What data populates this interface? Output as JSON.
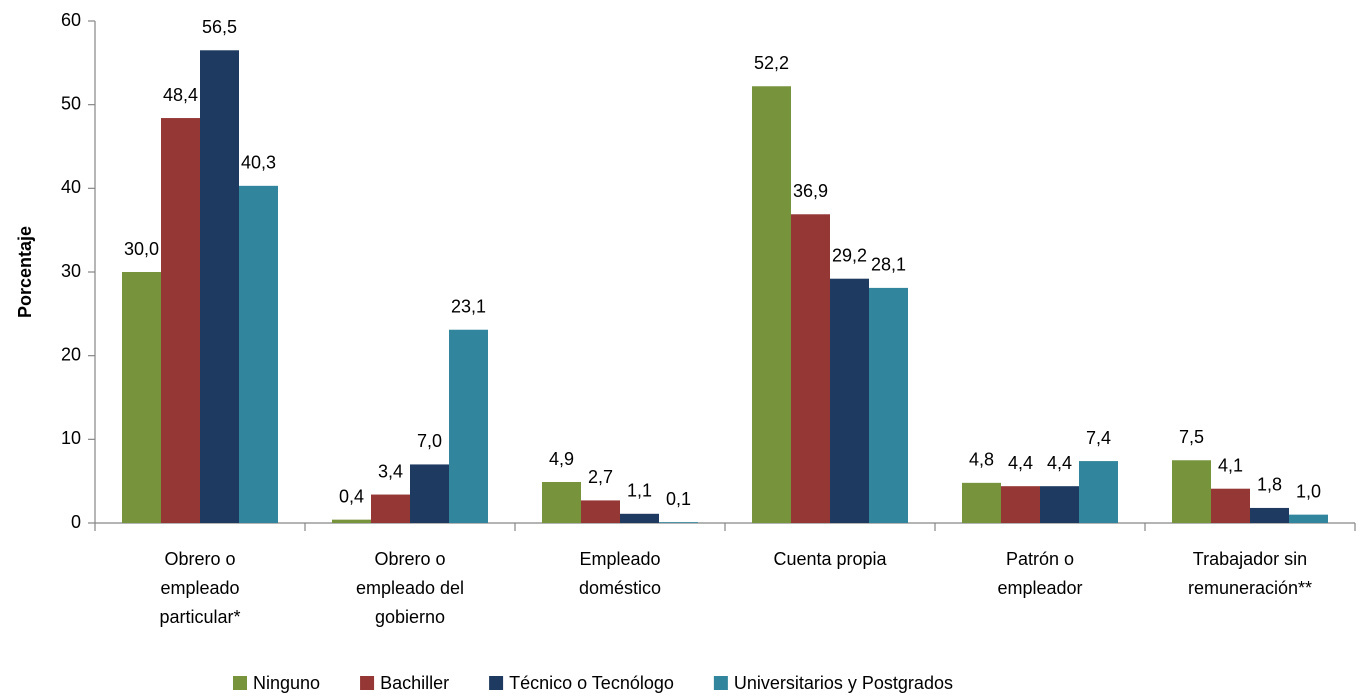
{
  "chart_data": {
    "type": "bar",
    "y_label": "Porcentaje",
    "categories": [
      "Obrero o empleado particular*",
      "Obrero o empleado del gobierno",
      "Empleado doméstico",
      "Cuenta propia",
      "Patrón o empleador",
      "Trabajador sin remuneración**"
    ],
    "series": [
      {
        "name": "Ninguno",
        "color": "#77933c",
        "values": [
          30.0,
          0.4,
          4.9,
          52.2,
          4.8,
          7.5
        ],
        "value_labels": [
          "30,0",
          "0,4",
          "4,9",
          "52,2",
          "4,8",
          "7,5"
        ]
      },
      {
        "name": "Bachiller",
        "color": "#953735",
        "values": [
          48.4,
          3.4,
          2.7,
          36.9,
          4.4,
          4.1
        ],
        "value_labels": [
          "48,4",
          "3,4",
          "2,7",
          "36,9",
          "4,4",
          "4,1"
        ]
      },
      {
        "name": "Técnico o Tecnólogo",
        "color": "#1f3a60",
        "values": [
          56.5,
          7.0,
          1.1,
          29.2,
          4.4,
          1.8
        ],
        "value_labels": [
          "56,5",
          "7,0",
          "1,1",
          "29,2",
          "4,4",
          "1,8"
        ]
      },
      {
        "name": "Universitarios y Postgrados",
        "color": "#31859c",
        "values": [
          40.3,
          23.1,
          0.1,
          28.1,
          7.4,
          1.0
        ],
        "value_labels": [
          "40,3",
          "23,1",
          "0,1",
          "28,1",
          "7,4",
          "1,0"
        ]
      }
    ],
    "ylim": [
      0,
      60
    ],
    "yticks": [
      0,
      10,
      20,
      30,
      40,
      50,
      60
    ]
  }
}
